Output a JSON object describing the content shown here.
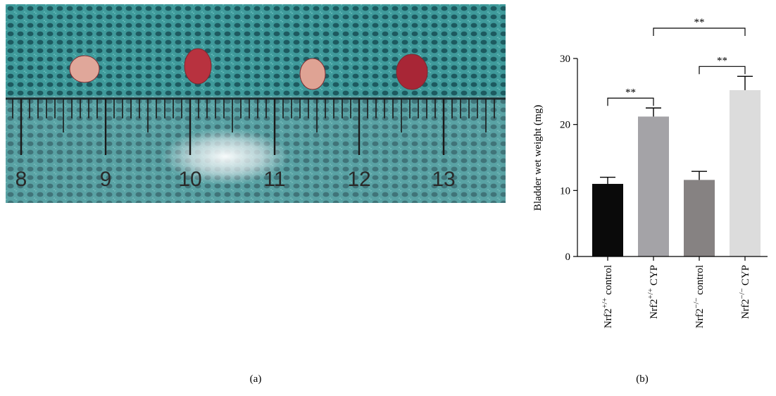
{
  "photo": {
    "ruler_numbers": [
      "8",
      "9",
      "10",
      "11",
      "12",
      "13"
    ],
    "bladder_colors": [
      "#e0a79a",
      "#b8323f",
      "#dfa394",
      "#a82636"
    ],
    "background_color": "#3f9a9b"
  },
  "panel_labels": {
    "a": "(a)",
    "b": "(b)"
  },
  "chart_data": {
    "type": "bar",
    "ylabel": "Bladder wet weight (mg)",
    "xlabel": "",
    "ylim": [
      0,
      30
    ],
    "yticks": [
      "0",
      "10",
      "20",
      "30"
    ],
    "categories": [
      {
        "base": "Nrf2",
        "sup": "+/+",
        "rest": " control"
      },
      {
        "base": "Nrf2",
        "sup": "+/+",
        "rest": " CYP"
      },
      {
        "base": "Nrf2",
        "sup": "−/−",
        "rest": " control"
      },
      {
        "base": "Nrf2",
        "sup": "−/−",
        "rest": " CYP"
      }
    ],
    "values": [
      11.0,
      21.2,
      11.6,
      25.2
    ],
    "errors": [
      1.0,
      1.3,
      1.3,
      2.1
    ],
    "bar_colors": [
      "#0a0a0a",
      "#a4a3a7",
      "#868282",
      "#dcdcdc"
    ],
    "significance": [
      {
        "from": 0,
        "to": 1,
        "label": "**"
      },
      {
        "from": 2,
        "to": 3,
        "label": "**"
      },
      {
        "from": 1,
        "to": 3,
        "label": "**"
      }
    ]
  }
}
